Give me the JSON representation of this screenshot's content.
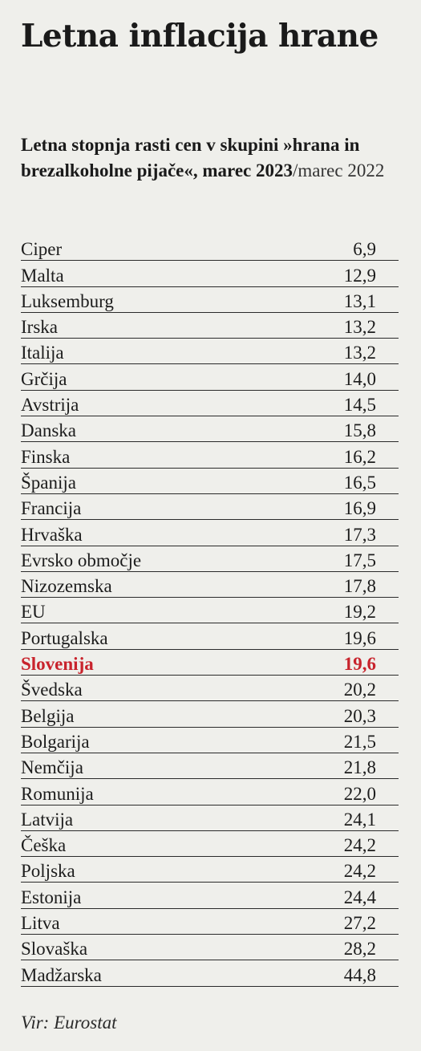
{
  "header": {
    "title": "Letna inflacija hrane",
    "subtitle_bold": "Letna stopnja rasti cen v skupini »hrana in brezalkoholne pijače«, marec 2023",
    "subtitle_plain": "/marec 2022"
  },
  "footer": {
    "source": "Vir: Eurostat"
  },
  "colors": {
    "background": "#efefeb",
    "highlight": "#c8232c",
    "text": "#1c1c1c"
  },
  "chart_data": {
    "type": "table",
    "title": "Letna inflacija hrane",
    "subtitle": "Letna stopnja rasti cen v skupini »hrana in brezalkoholne pijače«, marec 2023/marec 2022",
    "highlight": "Slovenija",
    "rows": [
      {
        "name": "Ciper",
        "value": "6,9"
      },
      {
        "name": "Malta",
        "value": "12,9"
      },
      {
        "name": "Luksemburg",
        "value": "13,1"
      },
      {
        "name": "Irska",
        "value": "13,2"
      },
      {
        "name": "Italija",
        "value": "13,2"
      },
      {
        "name": "Grčija",
        "value": "14,0"
      },
      {
        "name": "Avstrija",
        "value": "14,5"
      },
      {
        "name": "Danska",
        "value": "15,8"
      },
      {
        "name": "Finska",
        "value": "16,2"
      },
      {
        "name": "Španija",
        "value": "16,5"
      },
      {
        "name": "Francija",
        "value": "16,9"
      },
      {
        "name": "Hrvaška",
        "value": "17,3"
      },
      {
        "name": "Evrsko območje",
        "value": "17,5"
      },
      {
        "name": "Nizozemska",
        "value": "17,8"
      },
      {
        "name": "EU",
        "value": "19,2"
      },
      {
        "name": "Portugalska",
        "value": "19,6"
      },
      {
        "name": "Slovenija",
        "value": "19,6"
      },
      {
        "name": "Švedska",
        "value": "20,2"
      },
      {
        "name": "Belgija",
        "value": "20,3"
      },
      {
        "name": "Bolgarija",
        "value": "21,5"
      },
      {
        "name": "Nemčija",
        "value": "21,8"
      },
      {
        "name": "Romunija",
        "value": "22,0"
      },
      {
        "name": "Latvija",
        "value": "24,1"
      },
      {
        "name": "Češka",
        "value": "24,2"
      },
      {
        "name": "Poljska",
        "value": "24,2"
      },
      {
        "name": "Estonija",
        "value": "24,4"
      },
      {
        "name": "Litva",
        "value": "27,2"
      },
      {
        "name": "Slovaška",
        "value": "28,2"
      },
      {
        "name": "Madžarska",
        "value": "44,8"
      }
    ]
  }
}
